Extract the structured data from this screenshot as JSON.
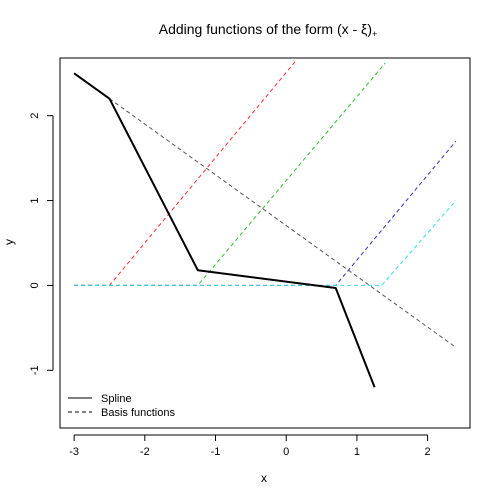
{
  "chart_data": {
    "type": "line",
    "title": "Adding functions of the form (x - ξ)",
    "title_subscript": "+",
    "xlabel": "x",
    "ylabel": "y",
    "xlim": [
      -3.2,
      2.6
    ],
    "ylim": [
      -1.68,
      2.68
    ],
    "xticks": [
      -3,
      -2,
      -1,
      0,
      1,
      2
    ],
    "yticks": [
      -1,
      0,
      1,
      2
    ],
    "legend": {
      "position": "bottom-left",
      "entries": [
        {
          "label": "Spline",
          "style": "solid"
        },
        {
          "label": "Basis functions",
          "style": "dashed"
        }
      ]
    },
    "series": [
      {
        "label": "Spline",
        "style": "solid",
        "color": "#000000",
        "width": 2,
        "points": [
          [
            -3.0,
            2.5
          ],
          [
            -2.5,
            2.2
          ],
          [
            -1.25,
            0.18
          ],
          [
            0.7,
            -0.03
          ],
          [
            1.25,
            -1.2
          ]
        ]
      },
      {
        "label": "Basis functions",
        "style": "dashed",
        "color": "#555555",
        "width": 1,
        "points": [
          [
            -2.5,
            2.2
          ],
          [
            2.4,
            -0.73
          ]
        ]
      },
      {
        "label": "Basis functions",
        "style": "dashed",
        "color": "#ff3030",
        "width": 1,
        "points": [
          [
            -3.0,
            0.0
          ],
          [
            -2.5,
            0.0
          ],
          [
            0.15,
            2.66
          ]
        ]
      },
      {
        "label": "Basis functions",
        "style": "dashed",
        "color": "#30c030",
        "width": 1,
        "points": [
          [
            -3.0,
            0.0
          ],
          [
            -1.25,
            0.0
          ],
          [
            1.4,
            2.62
          ]
        ]
      },
      {
        "label": "Basis functions",
        "style": "dashed",
        "color": "#3030d0",
        "width": 1,
        "points": [
          [
            -3.0,
            0.0
          ],
          [
            0.7,
            0.0
          ],
          [
            2.4,
            1.7
          ]
        ]
      },
      {
        "label": "Basis functions",
        "style": "dashed",
        "color": "#30e0e0",
        "width": 1,
        "points": [
          [
            -3.0,
            0.0
          ],
          [
            1.35,
            0.0
          ],
          [
            2.4,
            1.0
          ]
        ]
      }
    ]
  }
}
